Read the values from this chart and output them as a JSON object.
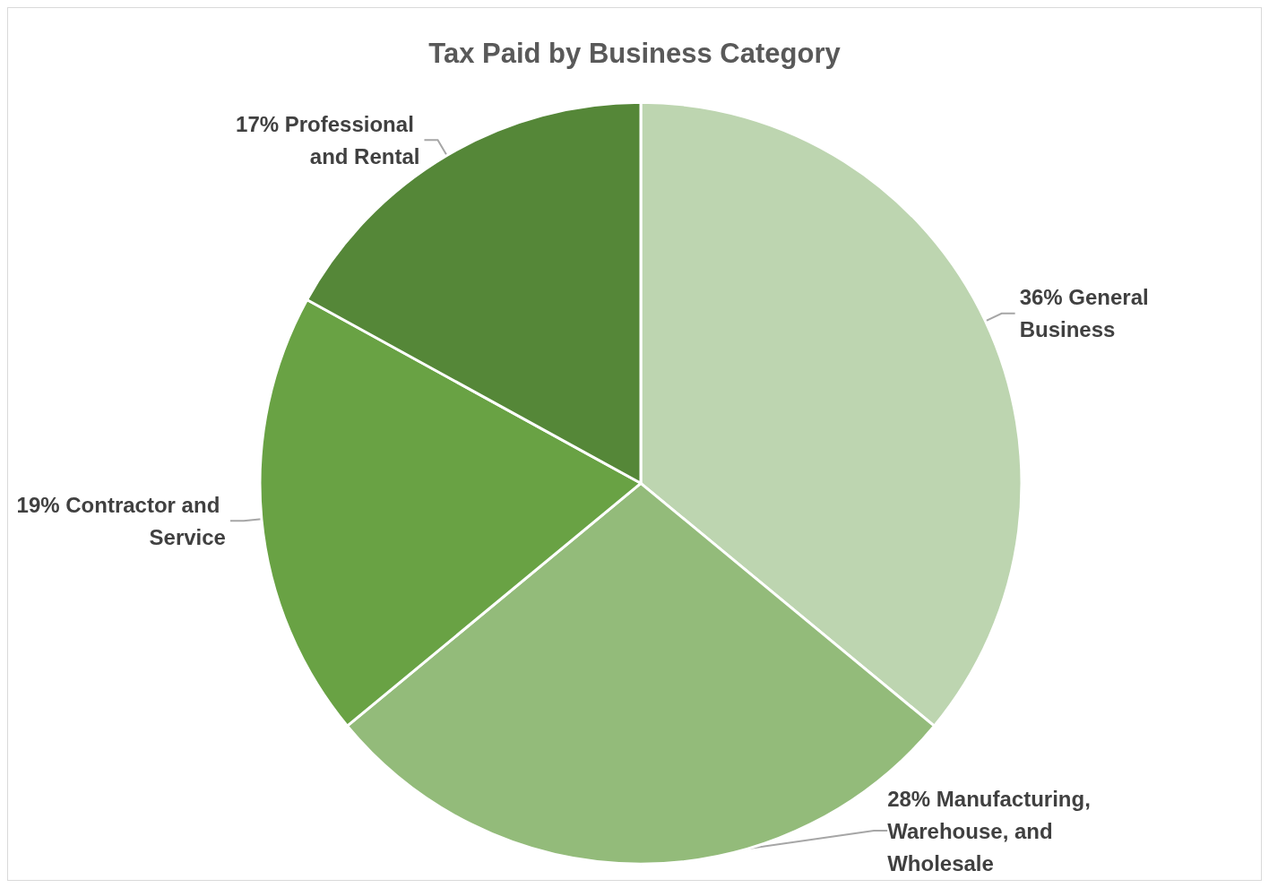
{
  "chart_data": {
    "type": "pie",
    "title": "Tax Paid by Business Category",
    "categories": [
      "General Business",
      "Manufacturing, Warehouse, and Wholesale",
      "Contractor and Service",
      "Professional and Rental"
    ],
    "values": [
      36,
      28,
      19,
      17
    ],
    "colors": [
      "#bdd5b0",
      "#93bb7a",
      "#69a244",
      "#558738"
    ],
    "legend": false,
    "value_labels": [
      "36%",
      "28%",
      "19%",
      "17%"
    ]
  }
}
